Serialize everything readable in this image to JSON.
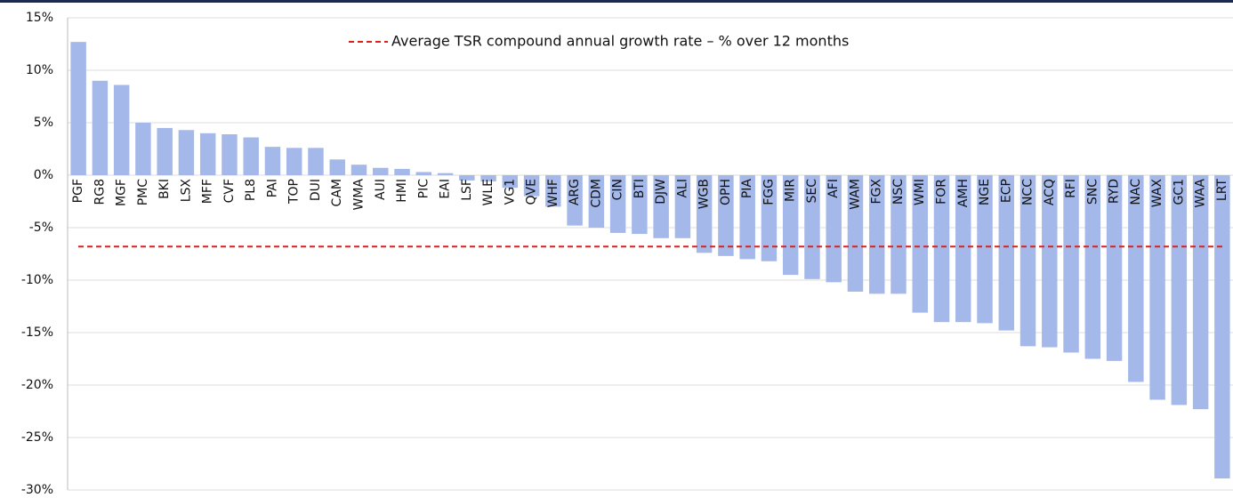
{
  "chart_data": {
    "type": "bar",
    "categories": [
      "PGF",
      "RG8",
      "MGF",
      "PMC",
      "BKI",
      "LSX",
      "MFF",
      "CVF",
      "PL8",
      "PAI",
      "TOP",
      "DUI",
      "CAM",
      "WMA",
      "AUI",
      "HMI",
      "PIC",
      "EAI",
      "LSF",
      "WLE",
      "VG1",
      "QVE",
      "WHF",
      "ARG",
      "CDM",
      "CIN",
      "BTI",
      "DJW",
      "ALI",
      "WGB",
      "OPH",
      "PIA",
      "FGG",
      "MIR",
      "SEC",
      "AFI",
      "WAM",
      "FGX",
      "NSC",
      "WMI",
      "FOR",
      "AMH",
      "NGE",
      "ECP",
      "NCC",
      "ACQ",
      "RFI",
      "SNC",
      "RYD",
      "NAC",
      "WAX",
      "GC1",
      "WAA",
      "LRT"
    ],
    "values": [
      12.7,
      9.0,
      8.6,
      5.0,
      4.5,
      4.3,
      4.0,
      3.9,
      3.6,
      2.7,
      2.6,
      2.6,
      1.5,
      1.0,
      0.7,
      0.6,
      0.3,
      0.2,
      -0.5,
      -0.6,
      -1.2,
      -2.0,
      -3.0,
      -4.8,
      -5.0,
      -5.5,
      -5.6,
      -6.0,
      -6.0,
      -7.4,
      -7.7,
      -8.0,
      -8.2,
      -9.5,
      -9.9,
      -10.2,
      -11.1,
      -11.3,
      -11.3,
      -13.1,
      -14.0,
      -14.0,
      -14.1,
      -14.8,
      -16.3,
      -16.4,
      -16.9,
      -17.5,
      -17.7,
      -19.7,
      -21.4,
      -21.9,
      -22.3,
      -28.9
    ],
    "color": "#a4b8ea",
    "reference_line": {
      "name": "Average TSR compound annual growth rate – % over 12 months",
      "value": -6.8,
      "color": "#e0201b"
    },
    "ylim": [
      -30,
      15
    ],
    "yticks": [
      {
        "value": -30,
        "label": "-30%"
      },
      {
        "value": -25,
        "label": "-25%"
      },
      {
        "value": -20,
        "label": "-20%"
      },
      {
        "value": -15,
        "label": "-15%"
      },
      {
        "value": -10,
        "label": "-10%"
      },
      {
        "value": -5,
        "label": "-5%"
      },
      {
        "value": 0,
        "label": "0%"
      },
      {
        "value": 5,
        "label": "5%"
      },
      {
        "value": 10,
        "label": "10%"
      },
      {
        "value": 15,
        "label": "15%"
      }
    ],
    "grid": true
  }
}
